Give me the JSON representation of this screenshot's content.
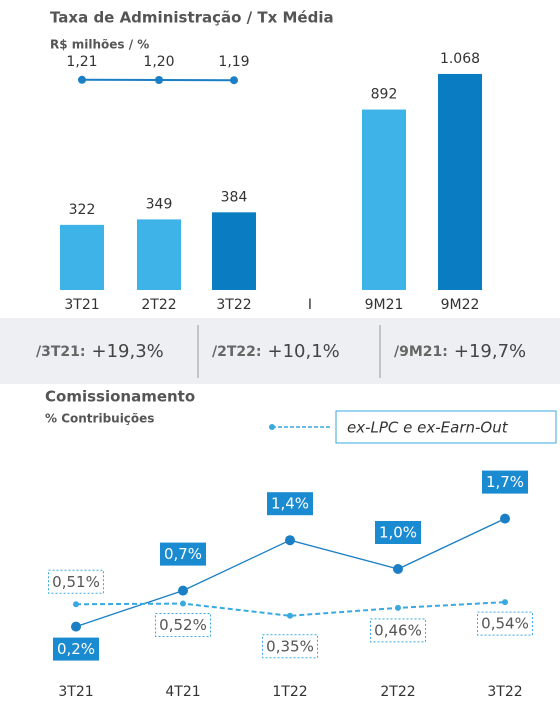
{
  "chart_data": [
    {
      "type": "bar",
      "title": "Taxa de Administração / Tx Média",
      "subtitle": "R$ milhões / %",
      "categories": [
        "3T21",
        "2T22",
        "3T22",
        "I",
        "9M21",
        "9M22"
      ],
      "series": [
        {
          "type": "bar",
          "values": [
            322,
            349,
            384,
            null,
            892,
            1068
          ],
          "value_labels": [
            "322",
            "349",
            "384",
            null,
            "892",
            "1.068"
          ],
          "colors": [
            "#3db3e8",
            "#3db3e8",
            "#0a7cc2",
            null,
            "#3db3e8",
            "#0a7cc2"
          ]
        },
        {
          "type": "line",
          "color": "#1a7fc4",
          "values": [
            1.21,
            1.2,
            1.19,
            null,
            null,
            null
          ],
          "value_labels": [
            "1,21",
            "1,20",
            "1,19",
            null,
            null,
            null
          ]
        }
      ]
    },
    {
      "type": "line",
      "title": "Comissionamento",
      "subtitle": "% Contribuições",
      "categories": [
        "3T21",
        "4T21",
        "1T22",
        "2T22",
        "3T22"
      ],
      "series": [
        {
          "color": "#1a7fc4",
          "dash": false,
          "values": [
            0.2,
            0.7,
            1.4,
            1.0,
            1.7
          ],
          "value_labels": [
            "0,2%",
            "0,7%",
            "1,4%",
            "1,0%",
            "1,7%"
          ]
        },
        {
          "name": "ex-LPC e ex-Earn-Out",
          "color": "#3aa9e0",
          "dash": true,
          "values": [
            0.51,
            0.52,
            0.35,
            0.46,
            0.54
          ],
          "value_labels": [
            "0,51%",
            "0,52%",
            "0,35%",
            "0,46%",
            "0,54%"
          ]
        }
      ]
    }
  ],
  "comparisons": [
    {
      "label": "/3T21:",
      "value": "+19,3%"
    },
    {
      "label": "/2T22:",
      "value": "+10,1%"
    },
    {
      "label": "/9M21:",
      "value": "+19,7%"
    }
  ]
}
